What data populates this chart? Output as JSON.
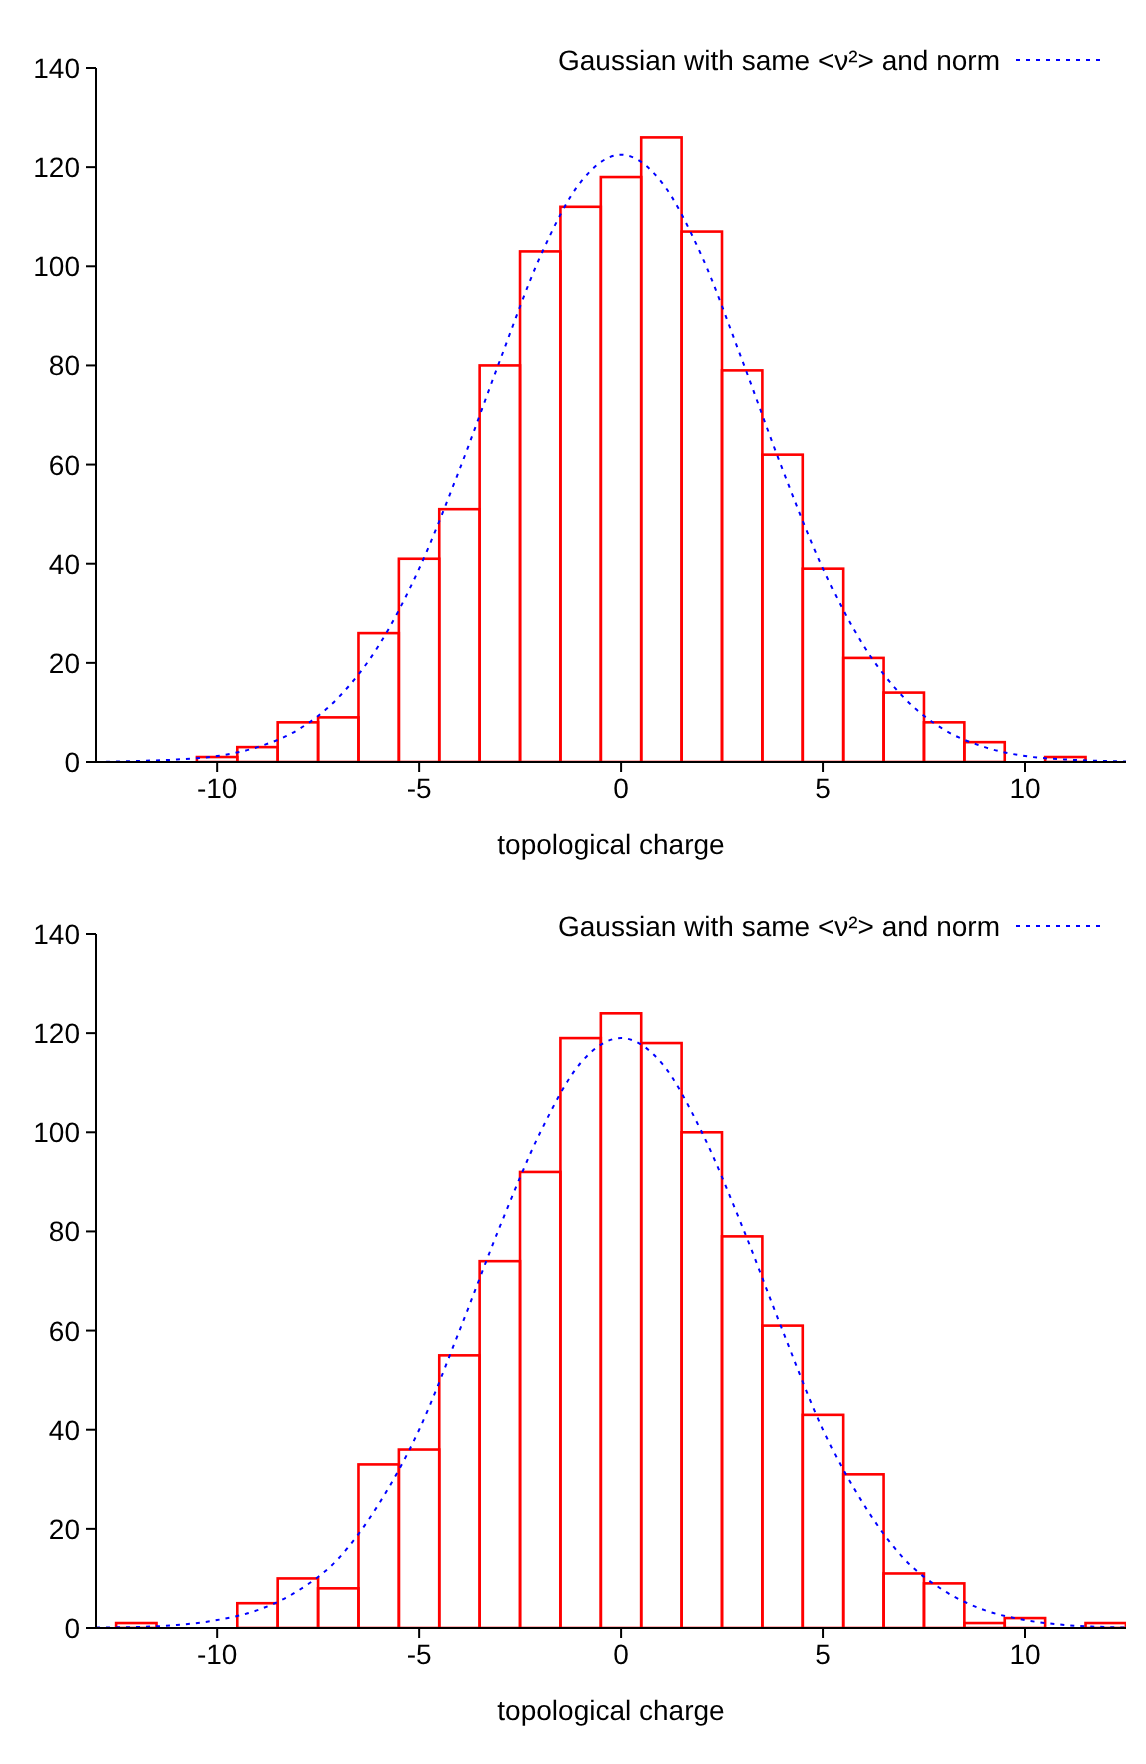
{
  "chart_data": [
    {
      "type": "histogram",
      "xlabel": "topological charge",
      "bins": [
        -12.5,
        -11.5,
        -10.5,
        -9.5,
        -8.5,
        -7.5,
        -6.5,
        -5.5,
        -4.5,
        -3.5,
        -2.5,
        -1.5,
        -0.5,
        0.5,
        1.5,
        2.5,
        3.5,
        4.5,
        5.5,
        6.5,
        7.5,
        8.5,
        9.5,
        10.5,
        11.5,
        12.5
      ],
      "values": [
        0,
        0,
        1,
        3,
        8,
        9,
        26,
        41,
        51,
        80,
        103,
        112,
        118,
        126,
        107,
        79,
        62,
        39,
        21,
        14,
        8,
        4,
        0,
        1,
        0
      ],
      "color": "#ff0000",
      "series": [
        {
          "type": "line",
          "name": "Gaussian with same <ν²> and norm",
          "color": "#0000ff",
          "line_style": "dotted",
          "x": [
            -13,
            -12,
            -11,
            -10,
            -9,
            -8,
            -7,
            -6,
            -5,
            -4,
            -3,
            -2,
            -1,
            0,
            1,
            2,
            3,
            4,
            5,
            6,
            7,
            8,
            9,
            10,
            11,
            12,
            12.5
          ],
          "values": [
            0,
            0.2,
            0.5,
            1.2,
            3,
            6.5,
            13,
            23.5,
            39,
            59,
            81,
            102,
            117,
            122.5,
            117,
            102,
            81,
            59,
            39,
            23.5,
            13,
            6.5,
            3,
            1.2,
            0.5,
            0.2,
            0.1
          ]
        }
      ],
      "xlim": [
        -13,
        12.5
      ],
      "xticks": [
        -10,
        -5,
        0,
        5,
        10
      ],
      "ylim": [
        0,
        140
      ],
      "yticks": [
        0,
        20,
        40,
        60,
        80,
        100,
        120,
        140
      ],
      "legend": "top right"
    },
    {
      "type": "histogram",
      "xlabel": "topological charge",
      "bins": [
        -12.5,
        -11.5,
        -10.5,
        -9.5,
        -8.5,
        -7.5,
        -6.5,
        -5.5,
        -4.5,
        -3.5,
        -2.5,
        -1.5,
        -0.5,
        0.5,
        1.5,
        2.5,
        3.5,
        4.5,
        5.5,
        6.5,
        7.5,
        8.5,
        9.5,
        10.5,
        11.5,
        12.5
      ],
      "values": [
        1,
        0,
        0,
        5,
        10,
        8,
        33,
        36,
        55,
        74,
        92,
        119,
        124,
        118,
        100,
        79,
        61,
        43,
        31,
        11,
        9,
        1,
        2,
        0,
        1
      ],
      "color": "#ff0000",
      "series": [
        {
          "type": "line",
          "name": "Gaussian with same <ν²> and norm",
          "color": "#0000ff",
          "line_style": "dotted",
          "x": [
            -13,
            -12,
            -11,
            -10,
            -9,
            -8,
            -7,
            -6,
            -5,
            -4,
            -3,
            -2,
            -1,
            0,
            1,
            2,
            3,
            4,
            5,
            6,
            7,
            8,
            9,
            10,
            11,
            12,
            12.5
          ],
          "values": [
            0.1,
            0.2,
            0.6,
            1.6,
            3.6,
            7.5,
            14,
            25,
            40,
            60,
            81,
            100,
            114,
            119,
            114,
            100,
            81,
            60,
            40,
            25,
            14,
            7.5,
            3.6,
            1.6,
            0.6,
            0.2,
            0.1
          ]
        }
      ],
      "xlim": [
        -13,
        12.5
      ],
      "xticks": [
        -10,
        -5,
        0,
        5,
        10
      ],
      "ylim": [
        0,
        140
      ],
      "yticks": [
        0,
        20,
        40,
        60,
        80,
        100,
        120,
        140
      ],
      "legend": "top right"
    }
  ]
}
